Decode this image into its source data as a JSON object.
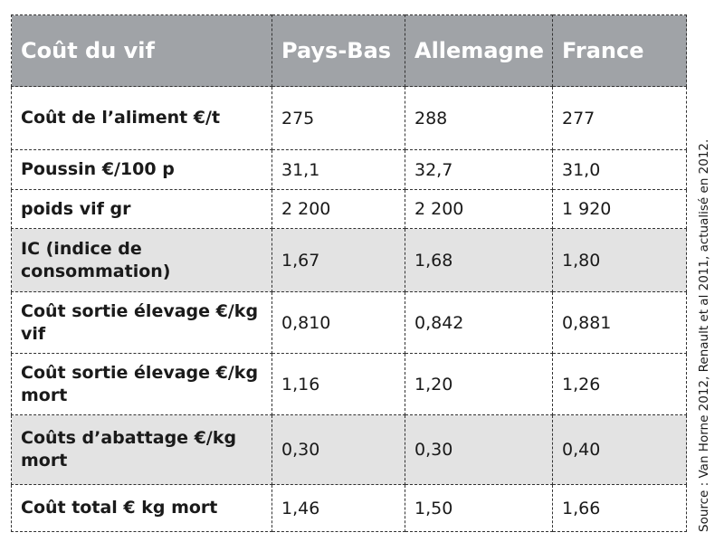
{
  "table": {
    "headers": [
      "Coût du vif",
      "Pays-Bas",
      "Allemagne",
      "France"
    ],
    "rows": [
      {
        "label": "Coût de l’aliment €/t",
        "values": [
          "275",
          "288",
          "277"
        ],
        "shaded": false
      },
      {
        "label": "Poussin €/100 p",
        "values": [
          "31,1",
          "32,7",
          "31,0"
        ],
        "shaded": false
      },
      {
        "label": "poids vif gr",
        "values": [
          "2 200",
          "2 200",
          "1 920"
        ],
        "shaded": false
      },
      {
        "label": "IC (indice de consommation)",
        "values": [
          "1,67",
          "1,68",
          "1,80"
        ],
        "shaded": true
      },
      {
        "label": "Coût sortie élevage €/kg vif",
        "values": [
          "0,810",
          "0,842",
          "0,881"
        ],
        "shaded": false
      },
      {
        "label": "Coût sortie élevage €/kg mort",
        "values": [
          "1,16",
          "1,20",
          "1,26"
        ],
        "shaded": false
      },
      {
        "label": "Coûts d’abattage €/kg mort",
        "values": [
          "0,30",
          "0,30",
          "0,40"
        ],
        "shaded": true
      },
      {
        "label": "Coût total € kg mort",
        "values": [
          "1,46",
          "1,50",
          "1,66"
        ],
        "shaded": false
      }
    ]
  },
  "source": "Source : Van Horne 2012, Renault et al 2011, actualisé en 2012.",
  "colors": {
    "header_bg": "#a0a3a7",
    "shaded_row": "#e3e3e3",
    "border": "#333333"
  }
}
